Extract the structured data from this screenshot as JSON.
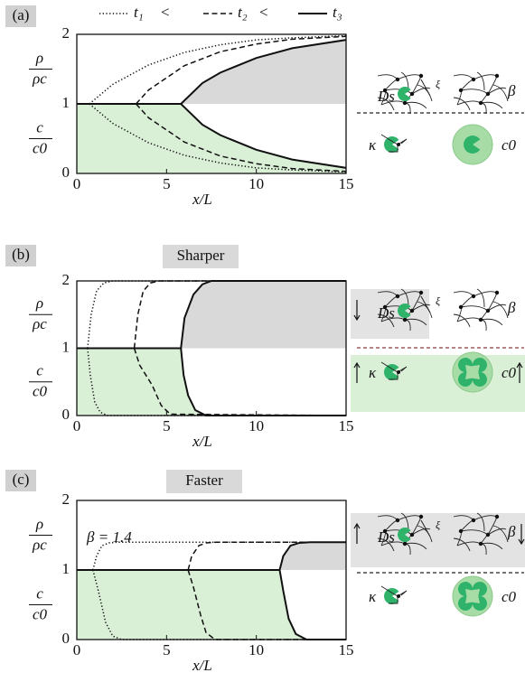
{
  "chart_data": [
    {
      "type": "line",
      "panel_label": "(a)",
      "xlabel": "x/L",
      "ylabel_top": [
        "ρ",
        "ρc"
      ],
      "ylabel_bottom": [
        "c",
        "c0"
      ],
      "xlim": [
        0,
        15
      ],
      "ylim": [
        0,
        2
      ],
      "xticks": [
        0,
        5,
        10,
        15
      ],
      "yticks": [
        0,
        1,
        2
      ],
      "fill_lower": "#d9efd6",
      "fill_upper": "#d9d9d9",
      "legend_separators": [
        "<",
        "<"
      ],
      "schematic_labels": [
        "Ds",
        "ξ",
        "β",
        "κ",
        "c0"
      ],
      "series": [
        {
          "name": "t₁",
          "dash": "dotted",
          "upper": {
            "x": [
              0.7,
              2,
              4,
              6,
              8,
              10,
              12,
              15
            ],
            "values": [
              1,
              1.28,
              1.56,
              1.74,
              1.85,
              1.92,
              1.95,
              1.98
            ]
          },
          "lower": {
            "x": [
              0.7,
              2,
              4,
              6,
              8,
              10,
              12,
              15
            ],
            "values": [
              1,
              0.72,
              0.44,
              0.26,
              0.15,
              0.08,
              0.05,
              0.02
            ]
          }
        },
        {
          "name": "t₂",
          "dash": "dashed",
          "upper": {
            "x": [
              3.3,
              4,
              6,
              8,
              10,
              12,
              15
            ],
            "values": [
              1,
              1.2,
              1.55,
              1.75,
              1.86,
              1.93,
              1.97
            ]
          },
          "lower": {
            "x": [
              3.3,
              4,
              6,
              8,
              10,
              12,
              15
            ],
            "values": [
              1,
              0.8,
              0.45,
              0.25,
              0.14,
              0.07,
              0.03
            ]
          }
        },
        {
          "name": "t₃",
          "dash": "solid",
          "upper": {
            "x": [
              5.8,
              7,
              8,
              10,
              12,
              15
            ],
            "values": [
              1,
              1.3,
              1.45,
              1.66,
              1.8,
              1.92
            ]
          },
          "lower": {
            "x": [
              0,
              5.8,
              7,
              8,
              10,
              12,
              15
            ],
            "values": [
              1,
              1,
              0.7,
              0.55,
              0.34,
              0.2,
              0.08
            ]
          }
        }
      ]
    },
    {
      "type": "line",
      "panel_label": "(b)",
      "title": "Sharper",
      "xlabel": "x/L",
      "ylabel_top": [
        "ρ",
        "ρc"
      ],
      "ylabel_bottom": [
        "c",
        "c0"
      ],
      "xlim": [
        0,
        15
      ],
      "ylim": [
        0,
        2
      ],
      "xticks": [
        0,
        5,
        10,
        15
      ],
      "yticks": [
        0,
        1,
        2
      ],
      "fill_lower": "#d9efd6",
      "fill_upper": "#d9d9d9",
      "schematic_labels": [
        "Ds",
        "ξ",
        "β",
        "κ",
        "c0"
      ],
      "series": [
        {
          "dash": "dotted",
          "upper": {
            "x": [
              0.6,
              0.8,
              1.1,
              1.5,
              2,
              15
            ],
            "values": [
              1,
              1.5,
              1.85,
              1.97,
              2,
              2
            ]
          },
          "lower": {
            "x": [
              0.6,
              0.75,
              1,
              1.3,
              1.7,
              15
            ],
            "values": [
              1,
              0.6,
              0.2,
              0.05,
              0,
              0
            ]
          }
        },
        {
          "dash": "dashed",
          "upper": {
            "x": [
              3.2,
              3.4,
              3.7,
              4.1,
              4.6,
              15
            ],
            "values": [
              1,
              1.5,
              1.85,
              1.97,
              2,
              2
            ]
          },
          "lower": {
            "x": [
              3.2,
              3.5,
              4.2,
              4.7,
              5.2,
              15
            ],
            "values": [
              1,
              0.75,
              0.45,
              0.15,
              0.02,
              0
            ]
          }
        },
        {
          "dash": "solid",
          "upper": {
            "x": [
              5.8,
              6,
              6.5,
              7,
              7.5,
              15
            ],
            "values": [
              1,
              1.45,
              1.8,
              1.95,
              2,
              2
            ]
          },
          "lower": {
            "x": [
              0,
              5.8,
              5.95,
              6.2,
              6.6,
              7.2,
              15
            ],
            "values": [
              1,
              1,
              0.6,
              0.3,
              0.08,
              0,
              0
            ]
          }
        }
      ]
    },
    {
      "type": "line",
      "panel_label": "(c)",
      "title": "Faster",
      "xlabel": "x/L",
      "annotation": "β = 1.4",
      "ylabel_top": [
        "ρ",
        "ρc"
      ],
      "ylabel_bottom": [
        "c",
        "c0"
      ],
      "xlim": [
        0,
        15
      ],
      "ylim": [
        0,
        2
      ],
      "xticks": [
        0,
        5,
        10,
        15
      ],
      "yticks": [
        0,
        1,
        2
      ],
      "fill_lower": "#d9efd6",
      "fill_upper": "#d9d9d9",
      "schematic_labels": [
        "Ds",
        "ξ",
        "β",
        "κ",
        "c0"
      ],
      "series": [
        {
          "dash": "dotted",
          "upper": {
            "x": [
              0.9,
              1.1,
              1.4,
              1.8,
              2.3,
              15
            ],
            "values": [
              1,
              1.2,
              1.35,
              1.39,
              1.4,
              1.4
            ]
          },
          "lower": {
            "x": [
              0.9,
              1.2,
              1.6,
              2,
              2.5,
              15
            ],
            "values": [
              1,
              0.7,
              0.25,
              0.05,
              0,
              0
            ]
          }
        },
        {
          "dash": "dashed",
          "upper": {
            "x": [
              6.2,
              6.4,
              6.8,
              7.2,
              7.8,
              15
            ],
            "values": [
              1,
              1.2,
              1.35,
              1.39,
              1.4,
              1.4
            ]
          },
          "lower": {
            "x": [
              6.2,
              6.5,
              6.9,
              7.2,
              7.7,
              15
            ],
            "values": [
              1,
              0.75,
              0.35,
              0.1,
              0,
              0
            ]
          }
        },
        {
          "dash": "solid",
          "upper": {
            "x": [
              11.3,
              11.5,
              11.9,
              12.4,
              13,
              15
            ],
            "values": [
              1,
              1.2,
              1.35,
              1.39,
              1.4,
              1.4
            ]
          },
          "lower": {
            "x": [
              0,
              11.3,
              11.5,
              11.8,
              12.2,
              12.8,
              15
            ],
            "values": [
              1,
              1,
              0.7,
              0.3,
              0.08,
              0,
              0
            ]
          }
        }
      ]
    }
  ]
}
